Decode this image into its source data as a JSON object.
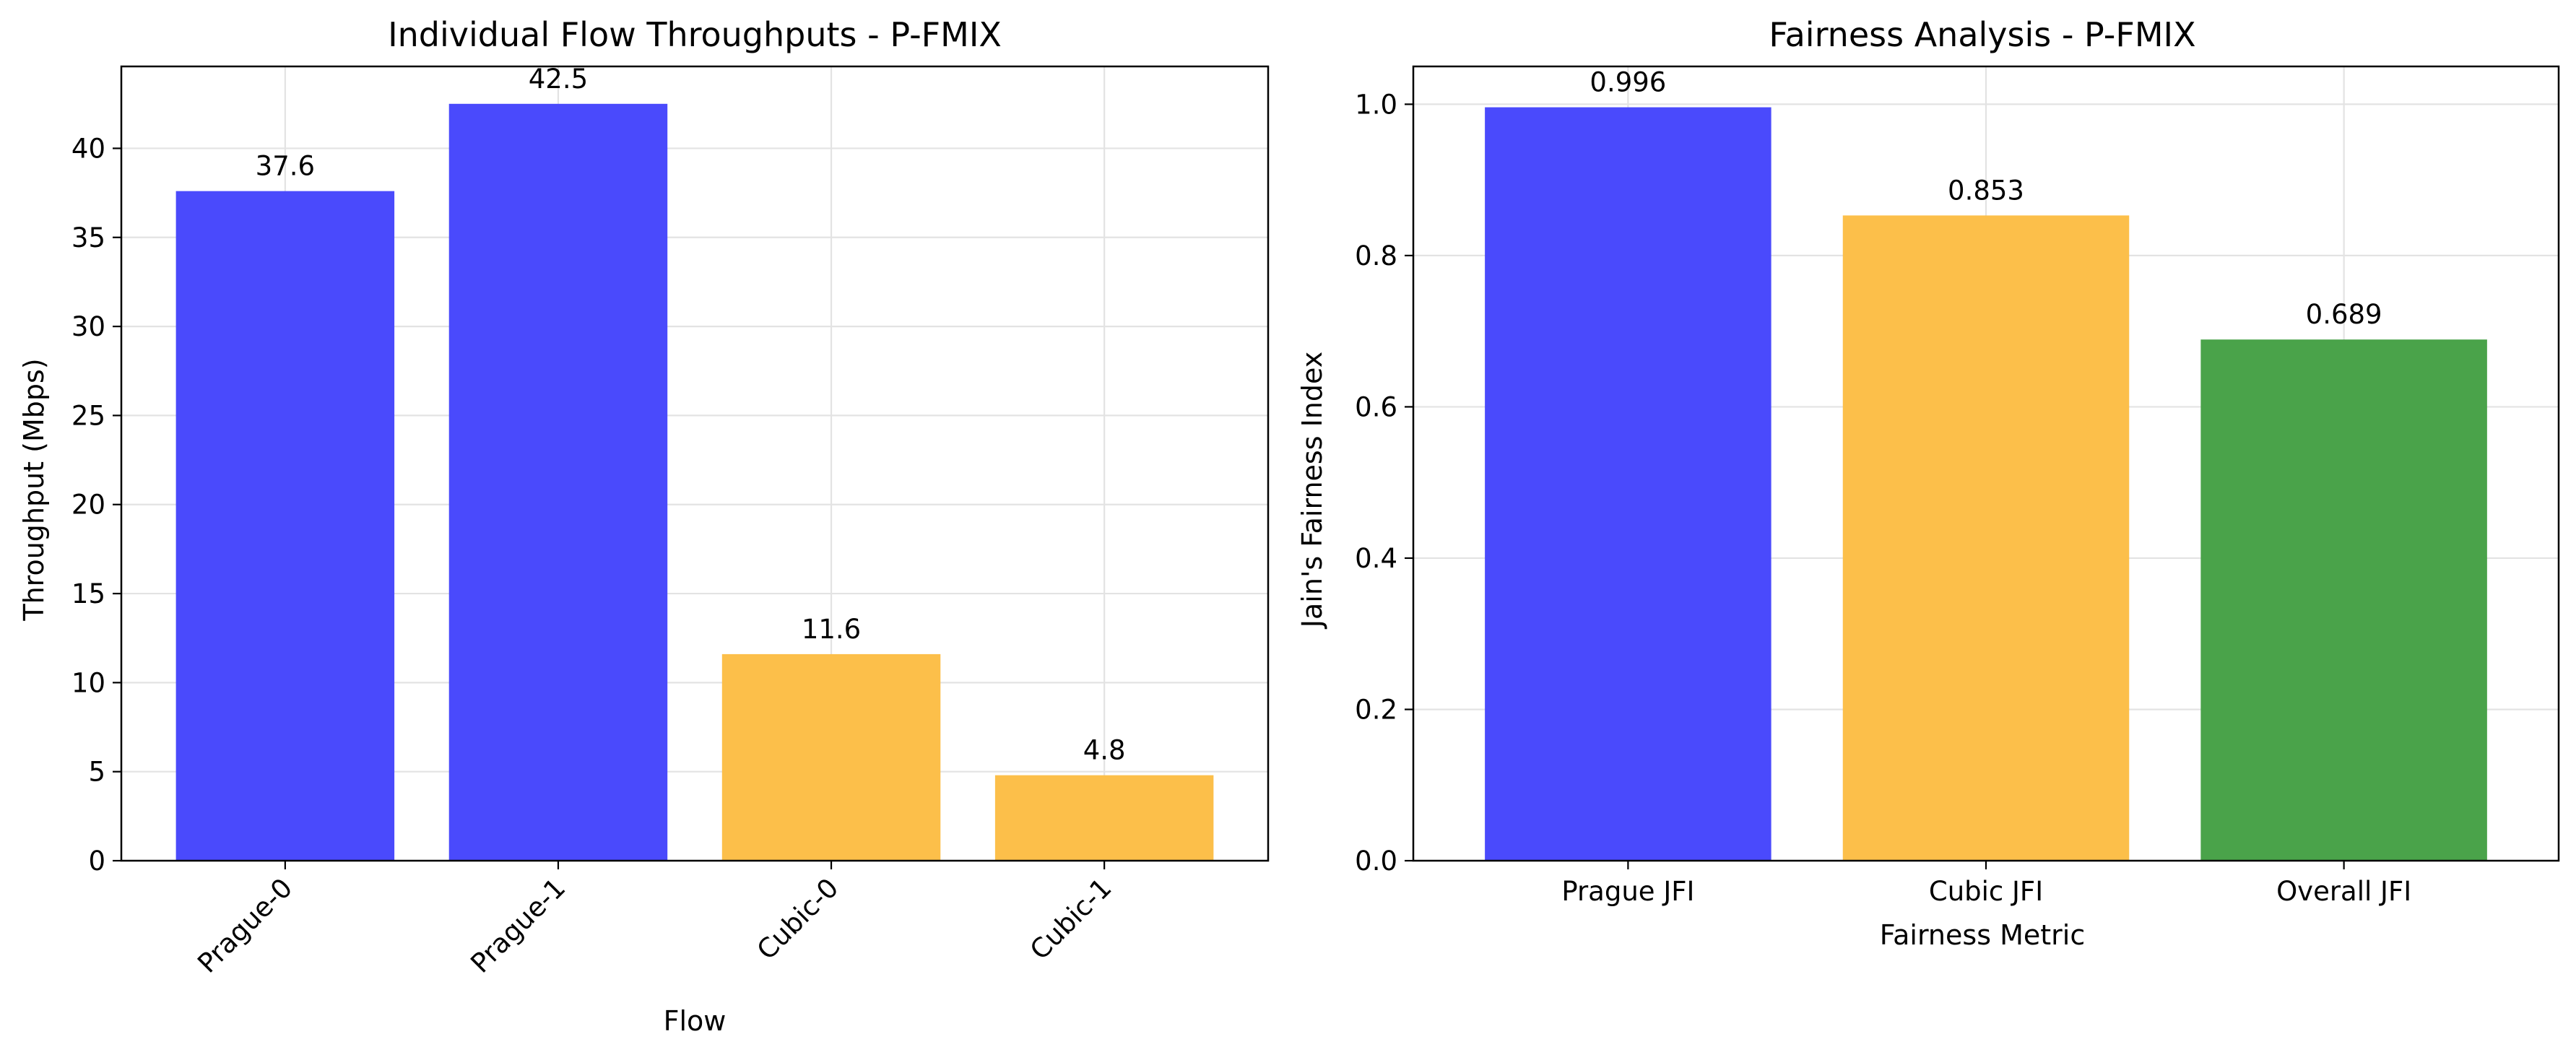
{
  "chart_data": [
    {
      "type": "bar",
      "title": "Individual Flow Throughputs - P-FMIX",
      "xlabel": "Flow",
      "ylabel": "Throughput (Mbps)",
      "categories": [
        "Prague-0",
        "Prague-1",
        "Cubic-0",
        "Cubic-1"
      ],
      "values": [
        37.6,
        42.5,
        11.6,
        4.8
      ],
      "value_labels": [
        "37.6",
        "42.5",
        "11.6",
        "4.8"
      ],
      "colors": [
        "#4a4afc",
        "#4a4afc",
        "#fcbf4a",
        "#fcbf4a"
      ],
      "ylim": [
        0,
        44.6
      ],
      "yticks": [
        0,
        5,
        10,
        15,
        20,
        25,
        30,
        35,
        40
      ],
      "ytick_labels": [
        "0",
        "5",
        "10",
        "15",
        "20",
        "25",
        "30",
        "35",
        "40"
      ],
      "xtick_rotation": 45,
      "grid": true
    },
    {
      "type": "bar",
      "title": "Fairness Analysis - P-FMIX",
      "xlabel": "Fairness Metric",
      "ylabel": "Jain's Fairness Index",
      "categories": [
        "Prague JFI",
        "Cubic JFI",
        "Overall JFI"
      ],
      "values": [
        0.996,
        0.853,
        0.689
      ],
      "value_labels": [
        "0.996",
        "0.853",
        "0.689"
      ],
      "colors": [
        "#4a4afc",
        "#fcbf4a",
        "#4aa34a"
      ],
      "ylim": [
        0,
        1.05
      ],
      "yticks": [
        0.0,
        0.2,
        0.4,
        0.6,
        0.8,
        1.0
      ],
      "ytick_labels": [
        "0.0",
        "0.2",
        "0.4",
        "0.6",
        "0.8",
        "1.0"
      ],
      "xtick_rotation": 0,
      "grid": true
    }
  ]
}
